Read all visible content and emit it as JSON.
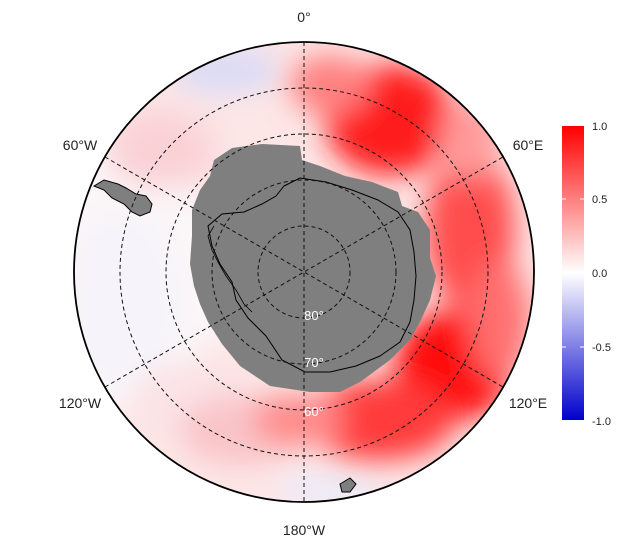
{
  "projection": "south-polar-stereographic",
  "colors": {
    "land": "#7f7f7f",
    "ocean_background": "#ffffff",
    "scale_low": "#0000cc",
    "scale_mid": "#ffffff",
    "scale_high": "#ff0000",
    "grid": "#111111",
    "coastline": "#000000"
  },
  "longitude_labels": [
    "0°",
    "60°E",
    "120°E",
    "180°W",
    "120°W",
    "60°W"
  ],
  "latitude_labels": [
    "80°",
    "70°",
    "60°"
  ],
  "colorbar": {
    "ticks": [
      "1.0",
      "0.5",
      "0.0",
      "-0.5",
      "-1.0"
    ],
    "range": [
      -1.0,
      1.0
    ]
  },
  "field_description_levels": {
    "east_sector_max": 1.0,
    "west_sector_min": -0.2
  }
}
